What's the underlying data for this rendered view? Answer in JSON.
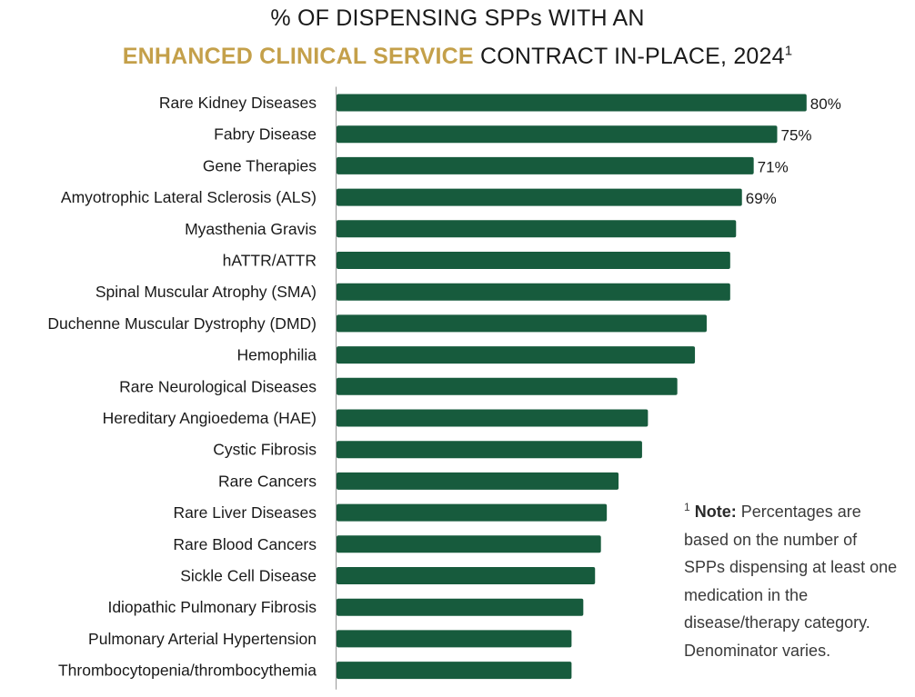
{
  "colors": {
    "bar": "#175b3d",
    "accent": "#c4a04a",
    "axis": "#999999"
  },
  "title": {
    "line1": "% OF DISPENSING SPPs WITH AN",
    "accent": "ENHANCED CLINICAL SERVICE",
    "rest": " CONTRACT IN-PLACE, 2024",
    "sup": "1"
  },
  "note": {
    "sup": "1",
    "label": "Note:",
    "text": " Percentages are based on the number of SPPs dispensing at least one medication in the disease/therapy category. Denominator varies."
  },
  "chart_data": {
    "type": "bar",
    "orientation": "horizontal",
    "categories": [
      "Rare Kidney Diseases",
      "Fabry Disease",
      "Gene Therapies",
      "Amyotrophic Lateral Sclerosis (ALS)",
      "Myasthenia Gravis",
      "hATTR/ATTR",
      "Spinal Muscular Atrophy (SMA)",
      "Duchenne Muscular Dystrophy (DMD)",
      "Hemophilia",
      "Rare Neurological Diseases",
      "Hereditary Angioedema (HAE)",
      "Cystic Fibrosis",
      "Rare Cancers",
      "Rare Liver Diseases",
      "Rare Blood Cancers",
      "Sickle Cell Disease",
      "Idiopathic Pulmonary Fibrosis",
      "Pulmonary Arterial Hypertension",
      "Thrombocytopenia/thrombocythemia"
    ],
    "values": [
      80,
      75,
      71,
      69,
      68,
      67,
      67,
      63,
      61,
      58,
      53,
      52,
      48,
      46,
      45,
      44,
      42,
      40,
      40
    ],
    "data_labels": [
      "80%",
      "75%",
      "71%",
      "69%",
      "",
      "",
      "",
      "",
      "",
      "",
      "",
      "",
      "",
      "",
      "",
      "",
      "",
      "",
      ""
    ],
    "xlim": [
      0,
      100
    ],
    "grid": false,
    "legend": "none"
  }
}
